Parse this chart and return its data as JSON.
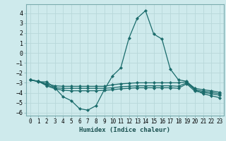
{
  "title": "",
  "xlabel": "Humidex (Indice chaleur)",
  "bg_color": "#ceeaec",
  "grid_color": "#b8d8da",
  "line_color": "#1a6b6b",
  "xlim": [
    -0.5,
    23.5
  ],
  "ylim": [
    -6.3,
    4.9
  ],
  "xticks": [
    0,
    1,
    2,
    3,
    4,
    5,
    6,
    7,
    8,
    9,
    10,
    11,
    12,
    13,
    14,
    15,
    16,
    17,
    18,
    19,
    20,
    21,
    22,
    23
  ],
  "yticks": [
    -6,
    -5,
    -4,
    -3,
    -2,
    -1,
    0,
    1,
    2,
    3,
    4
  ],
  "line1_x": [
    0,
    1,
    2,
    3,
    4,
    5,
    6,
    7,
    8,
    9,
    10,
    11,
    12,
    13,
    14,
    15,
    16,
    17,
    18,
    19,
    20,
    21,
    22,
    23
  ],
  "line1_y": [
    -2.7,
    -2.9,
    -2.9,
    -3.5,
    -4.4,
    -4.8,
    -5.6,
    -5.75,
    -5.3,
    -3.7,
    -2.3,
    -1.5,
    1.5,
    3.5,
    4.25,
    1.9,
    1.4,
    -1.6,
    -2.7,
    -2.85,
    -3.7,
    -4.1,
    -4.3,
    -4.5
  ],
  "line2_x": [
    0,
    1,
    2,
    3,
    4,
    5,
    6,
    7,
    8,
    9,
    10,
    11,
    12,
    13,
    14,
    15,
    16,
    17,
    18,
    19,
    20,
    21,
    22,
    23
  ],
  "line2_y": [
    -2.7,
    -2.85,
    -3.1,
    -3.3,
    -3.35,
    -3.35,
    -3.35,
    -3.35,
    -3.35,
    -3.35,
    -3.2,
    -3.1,
    -3.05,
    -3.0,
    -3.0,
    -3.0,
    -3.0,
    -3.0,
    -3.0,
    -2.9,
    -3.55,
    -3.7,
    -3.8,
    -3.95
  ],
  "line3_x": [
    0,
    1,
    2,
    3,
    4,
    5,
    6,
    7,
    8,
    9,
    10,
    11,
    12,
    13,
    14,
    15,
    16,
    17,
    18,
    19,
    20,
    21,
    22,
    23
  ],
  "line3_y": [
    -2.7,
    -2.85,
    -3.2,
    -3.5,
    -3.55,
    -3.55,
    -3.55,
    -3.55,
    -3.55,
    -3.55,
    -3.5,
    -3.4,
    -3.35,
    -3.3,
    -3.3,
    -3.3,
    -3.3,
    -3.3,
    -3.35,
    -3.0,
    -3.7,
    -3.85,
    -3.95,
    -4.1
  ],
  "line4_x": [
    0,
    1,
    2,
    3,
    4,
    5,
    6,
    7,
    8,
    9,
    10,
    11,
    12,
    13,
    14,
    15,
    16,
    17,
    18,
    19,
    20,
    21,
    22,
    23
  ],
  "line4_y": [
    -2.7,
    -2.85,
    -3.3,
    -3.6,
    -3.75,
    -3.8,
    -3.8,
    -3.8,
    -3.8,
    -3.75,
    -3.7,
    -3.6,
    -3.55,
    -3.5,
    -3.5,
    -3.5,
    -3.5,
    -3.5,
    -3.55,
    -3.1,
    -3.85,
    -3.95,
    -4.1,
    -4.25
  ]
}
